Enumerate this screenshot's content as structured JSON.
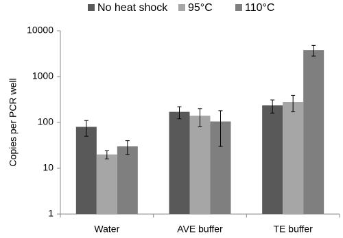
{
  "chart_data": {
    "type": "bar",
    "y_label": "Copies per PCR well",
    "categories": [
      "Water",
      "AVE buffer",
      "TE buffer"
    ],
    "series": [
      {
        "name": "No heat shock",
        "color": "#595959",
        "values": [
          80,
          170,
          235
        ],
        "errors": [
          30,
          50,
          75
        ]
      },
      {
        "name": "95°C",
        "color": "#a6a6a6",
        "values": [
          20,
          140,
          280
        ],
        "errors": [
          4,
          60,
          110
        ]
      },
      {
        "name": "110°C",
        "color": "#7f7f7f",
        "values": [
          30,
          105,
          3800
        ],
        "errors": [
          10,
          75,
          1000
        ]
      }
    ],
    "log_y": true,
    "ylim": [
      1,
      10000
    ],
    "yticks": [
      1,
      10,
      100,
      1000,
      10000
    ],
    "grid": false,
    "legend": "top"
  }
}
